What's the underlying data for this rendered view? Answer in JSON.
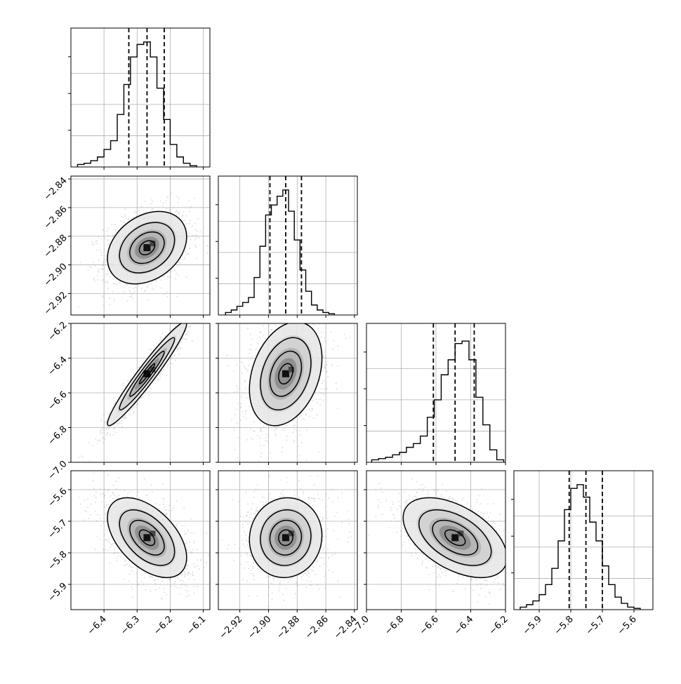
{
  "chart_data": {
    "type": "corner",
    "title": "",
    "parameters": [
      {
        "index": 0,
        "range": [
          -6.5,
          -6.08
        ],
        "ticks": [
          -6.4,
          -6.3,
          -6.2,
          -6.1
        ],
        "tick_labels": [
          "−6.4",
          "−6.3",
          "−6.2",
          "−6.1"
        ],
        "quantiles": [
          -6.325,
          -6.27,
          -6.218
        ],
        "histogram": {
          "edges": [
            -6.48,
            -6.46,
            -6.44,
            -6.42,
            -6.4,
            -6.38,
            -6.36,
            -6.34,
            -6.32,
            -6.3,
            -6.28,
            -6.26,
            -6.24,
            -6.22,
            -6.2,
            -6.18,
            -6.16,
            -6.14,
            -6.12
          ],
          "counts": [
            0.02,
            0.03,
            0.05,
            0.08,
            0.14,
            0.21,
            0.42,
            0.66,
            0.88,
            0.98,
            1.0,
            0.88,
            0.63,
            0.38,
            0.18,
            0.08,
            0.03,
            0.01
          ]
        }
      },
      {
        "index": 1,
        "range": [
          -2.935,
          -2.838
        ],
        "ticks": [
          -2.92,
          -2.9,
          -2.88,
          -2.86,
          -2.84
        ],
        "tick_labels": [
          "−2.92",
          "−2.90",
          "−2.88",
          "−2.86",
          "−2.84"
        ],
        "quantiles": [
          -2.899,
          -2.888,
          -2.877
        ],
        "histogram": {
          "edges": [
            -2.93,
            -2.926,
            -2.922,
            -2.918,
            -2.914,
            -2.91,
            -2.906,
            -2.902,
            -2.898,
            -2.894,
            -2.89,
            -2.886,
            -2.882,
            -2.878,
            -2.874,
            -2.87,
            -2.866,
            -2.862,
            -2.858,
            -2.854
          ],
          "counts": [
            0.02,
            0.04,
            0.07,
            0.1,
            0.14,
            0.3,
            0.55,
            0.8,
            0.88,
            0.95,
            1.0,
            0.83,
            0.6,
            0.36,
            0.19,
            0.08,
            0.04,
            0.02,
            0.01
          ]
        }
      },
      {
        "index": 2,
        "range": [
          -7.0,
          -6.2
        ],
        "ticks": [
          -7.0,
          -6.8,
          -6.6,
          -6.4,
          -6.2
        ],
        "tick_labels": [
          "−7.0",
          "−6.8",
          "−6.6",
          "−6.4",
          "−6.2"
        ],
        "quantiles": [
          -6.615,
          -6.49,
          -6.38
        ],
        "histogram": {
          "edges": [
            -6.97,
            -6.93,
            -6.89,
            -6.85,
            -6.81,
            -6.77,
            -6.73,
            -6.69,
            -6.65,
            -6.61,
            -6.57,
            -6.53,
            -6.49,
            -6.45,
            -6.41,
            -6.37,
            -6.33,
            -6.29,
            -6.25,
            -6.21
          ],
          "counts": [
            0.02,
            0.03,
            0.04,
            0.06,
            0.08,
            0.12,
            0.15,
            0.21,
            0.36,
            0.5,
            0.7,
            0.82,
            0.95,
            0.97,
            0.82,
            0.52,
            0.3,
            0.1,
            0.02
          ]
        }
      },
      {
        "index": 3,
        "range": [
          -5.98,
          -5.54
        ],
        "ticks": [
          -5.9,
          -5.8,
          -5.7,
          -5.6
        ],
        "tick_labels": [
          "−5.9",
          "−5.8",
          "−5.7",
          "−5.6"
        ],
        "quantiles": [
          -5.805,
          -5.752,
          -5.7
        ],
        "histogram": {
          "edges": [
            -5.96,
            -5.94,
            -5.92,
            -5.9,
            -5.88,
            -5.86,
            -5.84,
            -5.82,
            -5.8,
            -5.78,
            -5.76,
            -5.74,
            -5.72,
            -5.7,
            -5.68,
            -5.66,
            -5.64,
            -5.62,
            -5.6,
            -5.58
          ],
          "counts": [
            0.02,
            0.04,
            0.07,
            0.12,
            0.2,
            0.33,
            0.55,
            0.8,
            0.97,
            1.0,
            0.9,
            0.7,
            0.55,
            0.35,
            0.2,
            0.1,
            0.05,
            0.02,
            0.01
          ]
        }
      }
    ],
    "y_axis_ticks": {
      "row1": {
        "ticks": [
          -2.92,
          -2.9,
          -2.88,
          -2.86,
          -2.84
        ],
        "labels": [
          "−2.92",
          "−2.90",
          "−2.88",
          "−2.86",
          "−2.84"
        ]
      },
      "row2": {
        "ticks": [
          -7.0,
          -6.8,
          -6.6,
          -6.4,
          -6.2
        ],
        "labels": [
          "−7.0",
          "−6.8",
          "−6.6",
          "−6.4",
          "−6.2"
        ]
      },
      "row3": {
        "ticks": [
          -5.9,
          -5.8,
          -5.7,
          -5.6
        ],
        "labels": [
          "−5.9",
          "−5.8",
          "−5.7",
          "−5.6"
        ]
      }
    },
    "pairs": [
      {
        "x": 0,
        "y": 1,
        "center": [
          -6.27,
          -2.888
        ],
        "sd": [
          0.052,
          0.011
        ],
        "corr": 0.3
      },
      {
        "x": 0,
        "y": 2,
        "center": [
          -6.27,
          -6.49
        ],
        "sd": [
          0.052,
          0.13
        ],
        "corr": 0.96
      },
      {
        "x": 1,
        "y": 2,
        "center": [
          -2.888,
          -6.49
        ],
        "sd": [
          0.011,
          0.13
        ],
        "corr": 0.3
      },
      {
        "x": 0,
        "y": 3,
        "center": [
          -6.27,
          -5.752
        ],
        "sd": [
          0.052,
          0.055
        ],
        "corr": -0.5
      },
      {
        "x": 1,
        "y": 3,
        "center": [
          -2.888,
          -5.752
        ],
        "sd": [
          0.011,
          0.055
        ],
        "corr": 0.05
      },
      {
        "x": 2,
        "y": 3,
        "center": [
          -6.49,
          -5.752
        ],
        "sd": [
          0.13,
          0.055
        ],
        "corr": -0.5
      }
    ],
    "grid": true,
    "legend": "none"
  }
}
